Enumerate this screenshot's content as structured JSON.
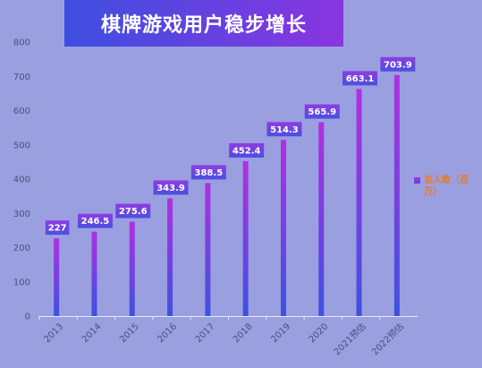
{
  "title": "棋牌游戏用户稳步增长",
  "colors": {
    "background": "#9a9fe0",
    "bar_top": "#b22fe0",
    "bar_bottom": "#3d52df",
    "label_bg_top": "#8f3ce2",
    "label_bg_bottom": "#4b4fe0",
    "legend_text": "#f07a1a",
    "tick_text": "#4a4f7a"
  },
  "chart_data": {
    "type": "bar",
    "title": "棋牌游戏用户稳步增长",
    "categories": [
      "2013",
      "2014",
      "2015",
      "2016",
      "2017",
      "2018",
      "2019",
      "2020",
      "2021预估",
      "2022预估"
    ],
    "series": [
      {
        "name": "总人数（百万）",
        "values": [
          227,
          246.5,
          275.6,
          343.9,
          388.5,
          452.4,
          514.3,
          565.9,
          663.1,
          703.9
        ],
        "value_labels": [
          "227",
          "246.5",
          "275.6",
          "343.9",
          "388.5",
          "452.4",
          "514.3",
          "565.9",
          "663.1",
          "703.9"
        ]
      }
    ],
    "yticks": [
      "0",
      "100",
      "200",
      "300",
      "400",
      "500",
      "600",
      "700",
      "800"
    ],
    "ylim": [
      0,
      800
    ],
    "grid": false,
    "legend_position": "right"
  }
}
